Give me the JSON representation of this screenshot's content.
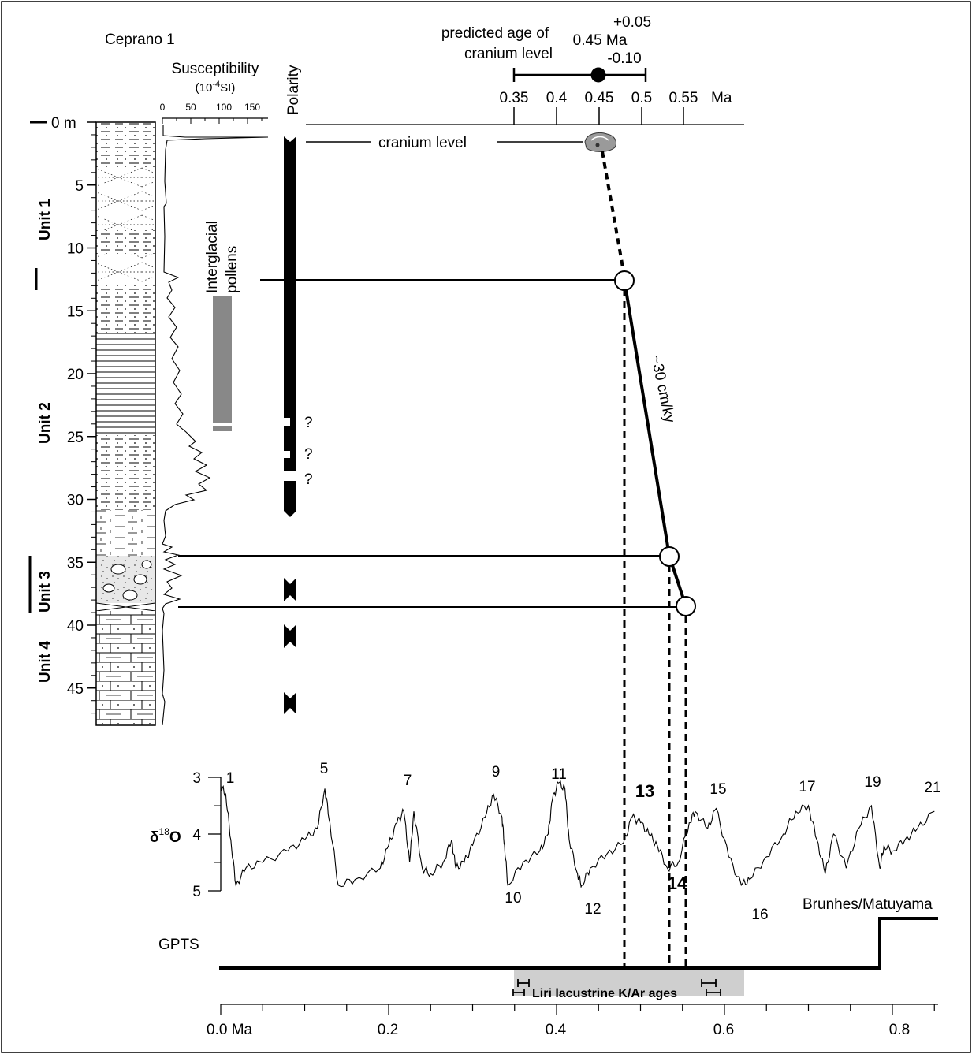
{
  "figure": {
    "site": "Ceprano 1",
    "susceptibility": {
      "title": "Susceptibility",
      "unit_base": "(10",
      "unit_exp": "-4",
      "unit_tail": "SI)",
      "ticks": [
        "0",
        "50",
        "100",
        "150"
      ]
    },
    "polarity_label": "Polarity",
    "depth": {
      "zero_label": "0 m",
      "ticks": [
        "5",
        "10",
        "15",
        "20",
        "25",
        "30",
        "35",
        "40",
        "45"
      ]
    },
    "units": [
      "Unit 1",
      "Unit 2",
      "Unit 3",
      "Unit 4"
    ],
    "pollen_label_1": "Interglacial",
    "pollen_label_2": "pollens",
    "question_marks": [
      "?",
      "?",
      "?"
    ],
    "predicted_age": {
      "label_1": "predicted age of",
      "label_2": "cranium level",
      "plus": "+0.05",
      "value": "0.45 Ma",
      "minus": "-0.10",
      "scale_ticks": [
        "0.35",
        "0.4",
        "0.45",
        "0.5",
        "0.55"
      ],
      "scale_unit": "Ma"
    },
    "cranium_label": "cranium level",
    "rate_label": "~30 cm/ky",
    "d18o": {
      "label_delta": "δ",
      "label_sup": "18",
      "label_o": "O",
      "ticks": [
        "3",
        "4",
        "5"
      ],
      "stages": [
        "1",
        "5",
        "7",
        "9",
        "11",
        "13",
        "15",
        "17",
        "19",
        "21",
        "10",
        "12",
        "14",
        "16"
      ]
    },
    "gpts_label": "GPTS",
    "brunhes_label": "Brunhes/Matuyama",
    "kar_label": "Liri lacustrine K/Ar ages",
    "age_axis_ticks": [
      "0.0 Ma",
      "0.2",
      "0.4",
      "0.6",
      "0.8"
    ]
  },
  "chart_data": {
    "type": "line",
    "title": "",
    "xlabel": "",
    "ylabel": "δ18O",
    "xlim": [
      0,
      0.85
    ],
    "ylim": [
      5,
      3
    ],
    "series": [
      {
        "x": [
          0.0,
          0.006,
          0.012,
          0.018,
          0.03,
          0.05,
          0.08,
          0.1,
          0.115,
          0.124,
          0.13,
          0.14,
          0.16,
          0.19,
          0.2,
          0.21,
          0.218,
          0.225,
          0.23,
          0.24,
          0.25,
          0.265,
          0.275,
          0.28,
          0.29,
          0.3,
          0.315,
          0.325,
          0.335,
          0.338,
          0.342,
          0.36,
          0.38,
          0.39,
          0.395,
          0.402,
          0.41,
          0.415,
          0.425,
          0.43,
          0.44,
          0.46,
          0.48,
          0.49,
          0.5,
          0.51,
          0.52,
          0.532,
          0.545,
          0.558,
          0.565,
          0.58,
          0.59,
          0.605,
          0.62,
          0.63,
          0.65,
          0.67,
          0.685,
          0.7,
          0.71,
          0.72,
          0.73,
          0.745,
          0.76,
          0.775,
          0.785,
          0.79,
          0.8,
          0.815,
          0.83,
          0.85
        ],
        "y": [
          3.15,
          3.3,
          4.1,
          4.9,
          4.6,
          4.5,
          4.3,
          4.1,
          3.9,
          3.2,
          3.8,
          4.9,
          4.8,
          4.6,
          4.2,
          3.8,
          3.6,
          4.5,
          3.6,
          4.6,
          4.7,
          4.5,
          4.1,
          4.6,
          4.5,
          4.2,
          3.7,
          3.3,
          3.7,
          4.2,
          4.9,
          4.5,
          4.3,
          4.0,
          3.4,
          3.1,
          3.2,
          4.1,
          4.7,
          4.9,
          4.6,
          4.35,
          4.15,
          3.7,
          3.8,
          4.0,
          4.2,
          4.6,
          4.5,
          3.8,
          3.6,
          3.9,
          3.55,
          4.4,
          4.9,
          4.8,
          4.4,
          4.0,
          3.6,
          3.5,
          4.1,
          4.7,
          4.0,
          4.6,
          3.9,
          3.5,
          4.6,
          4.2,
          4.3,
          4.1,
          3.9,
          3.6
        ]
      }
    ],
    "stage_labels": [
      "1",
      "5",
      "7",
      "9",
      "11",
      "13",
      "15",
      "17",
      "19",
      "21",
      "10",
      "12",
      "14",
      "16"
    ],
    "age_axis": {
      "ticks": [
        0.0,
        0.2,
        0.4,
        0.6,
        0.8
      ],
      "unit": "Ma"
    },
    "tie_points_ma": [
      0.48,
      0.532,
      0.552
    ],
    "kar_age_range_ma": [
      0.35,
      0.62
    ],
    "brunhes_matuyama_ma": 0.78,
    "predicted_age_ma": {
      "value": 0.45,
      "plus": 0.05,
      "minus": 0.1
    },
    "sedimentation_rate_cm_per_ky": 30,
    "depth_axis_m": {
      "min": 0,
      "max": 48
    }
  }
}
